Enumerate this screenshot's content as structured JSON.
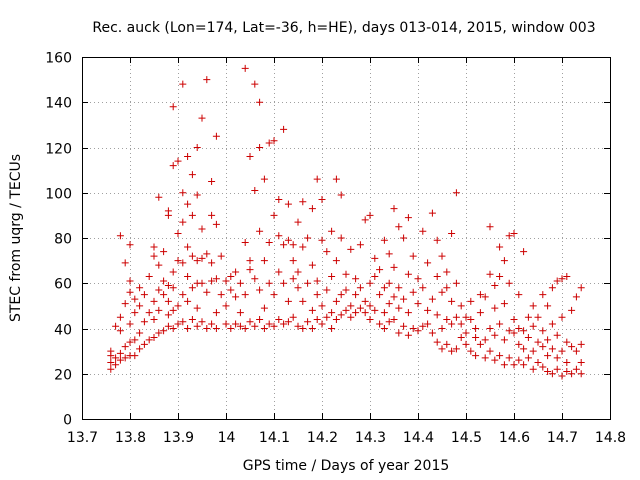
{
  "chart_data": {
    "type": "scatter",
    "title": "Rec. auck (Lon=174, Lat=-36, h=HE), days 013-014, 2015, window 003",
    "xlabel": "GPS time / Days of year 2015",
    "ylabel": "STEC from uqrg / TECUs",
    "xlim": [
      13.7,
      14.8
    ],
    "ylim": [
      0,
      160
    ],
    "xticks": [
      "13.7",
      "13.8",
      "13.9",
      "14",
      "14.1",
      "14.2",
      "14.3",
      "14.4",
      "14.5",
      "14.6",
      "14.7",
      "14.8"
    ],
    "yticks": [
      "0",
      "20",
      "40",
      "60",
      "80",
      "100",
      "120",
      "140",
      "160"
    ],
    "grid": true,
    "marker": "plus",
    "marker_color": "#cc0000",
    "points": [
      [
        13.76,
        22
      ],
      [
        13.76,
        25
      ],
      [
        13.76,
        28
      ],
      [
        13.76,
        30
      ],
      [
        13.77,
        24
      ],
      [
        13.77,
        27
      ],
      [
        13.77,
        41
      ],
      [
        13.78,
        26
      ],
      [
        13.78,
        29
      ],
      [
        13.78,
        39
      ],
      [
        13.78,
        45
      ],
      [
        13.78,
        81
      ],
      [
        13.79,
        27
      ],
      [
        13.79,
        32
      ],
      [
        13.79,
        51
      ],
      [
        13.79,
        69
      ],
      [
        13.8,
        28
      ],
      [
        13.8,
        34
      ],
      [
        13.8,
        42
      ],
      [
        13.8,
        56
      ],
      [
        13.8,
        61
      ],
      [
        13.8,
        77
      ],
      [
        13.81,
        28
      ],
      [
        13.81,
        35
      ],
      [
        13.81,
        47
      ],
      [
        13.81,
        53
      ],
      [
        13.82,
        31
      ],
      [
        13.82,
        38
      ],
      [
        13.82,
        50
      ],
      [
        13.82,
        58
      ],
      [
        13.83,
        33
      ],
      [
        13.83,
        43
      ],
      [
        13.83,
        55
      ],
      [
        13.84,
        35
      ],
      [
        13.84,
        47
      ],
      [
        13.84,
        63
      ],
      [
        13.85,
        36
      ],
      [
        13.85,
        44
      ],
      [
        13.85,
        52
      ],
      [
        13.85,
        72
      ],
      [
        13.85,
        76
      ],
      [
        13.86,
        38
      ],
      [
        13.86,
        48
      ],
      [
        13.86,
        57
      ],
      [
        13.86,
        68
      ],
      [
        13.86,
        98
      ],
      [
        13.87,
        39
      ],
      [
        13.87,
        55
      ],
      [
        13.87,
        61
      ],
      [
        13.87,
        74
      ],
      [
        13.88,
        41
      ],
      [
        13.88,
        46
      ],
      [
        13.88,
        52
      ],
      [
        13.88,
        59
      ],
      [
        13.88,
        90
      ],
      [
        13.88,
        92
      ],
      [
        13.89,
        40
      ],
      [
        13.89,
        48
      ],
      [
        13.89,
        58
      ],
      [
        13.89,
        65
      ],
      [
        13.89,
        112
      ],
      [
        13.89,
        138
      ],
      [
        13.9,
        42
      ],
      [
        13.9,
        50
      ],
      [
        13.9,
        70
      ],
      [
        13.9,
        82
      ],
      [
        13.9,
        114
      ],
      [
        13.91,
        43
      ],
      [
        13.91,
        55
      ],
      [
        13.91,
        69
      ],
      [
        13.91,
        87
      ],
      [
        13.91,
        100
      ],
      [
        13.91,
        148
      ],
      [
        13.92,
        40
      ],
      [
        13.92,
        52
      ],
      [
        13.92,
        63
      ],
      [
        13.92,
        76
      ],
      [
        13.92,
        95
      ],
      [
        13.92,
        116
      ],
      [
        13.93,
        44
      ],
      [
        13.93,
        58
      ],
      [
        13.93,
        72
      ],
      [
        13.93,
        90
      ],
      [
        13.93,
        108
      ],
      [
        13.94,
        41
      ],
      [
        13.94,
        49
      ],
      [
        13.94,
        60
      ],
      [
        13.94,
        70
      ],
      [
        13.94,
        99
      ],
      [
        13.94,
        120
      ],
      [
        13.95,
        43
      ],
      [
        13.95,
        60
      ],
      [
        13.95,
        71
      ],
      [
        13.95,
        84
      ],
      [
        13.95,
        133
      ],
      [
        13.96,
        40
      ],
      [
        13.96,
        56
      ],
      [
        13.96,
        73
      ],
      [
        13.96,
        150
      ],
      [
        13.97,
        42
      ],
      [
        13.97,
        61
      ],
      [
        13.97,
        69
      ],
      [
        13.97,
        90
      ],
      [
        13.97,
        105
      ],
      [
        13.98,
        40
      ],
      [
        13.98,
        47
      ],
      [
        13.98,
        62
      ],
      [
        13.98,
        86
      ],
      [
        13.98,
        125
      ],
      [
        13.99,
        55
      ],
      [
        13.99,
        72
      ],
      [
        14,
        42
      ],
      [
        14,
        50
      ],
      [
        14,
        61
      ],
      [
        14.01,
        40
      ],
      [
        14.01,
        57
      ],
      [
        14.01,
        63
      ],
      [
        14.02,
        42
      ],
      [
        14.02,
        54
      ],
      [
        14.02,
        65
      ],
      [
        14.03,
        41
      ],
      [
        14.03,
        47
      ],
      [
        14.03,
        60
      ],
      [
        14.04,
        40
      ],
      [
        14.04,
        55
      ],
      [
        14.04,
        78
      ],
      [
        14.04,
        155
      ],
      [
        14.05,
        43
      ],
      [
        14.05,
        66
      ],
      [
        14.05,
        70
      ],
      [
        14.05,
        116
      ],
      [
        14.06,
        41
      ],
      [
        14.06,
        62
      ],
      [
        14.06,
        101
      ],
      [
        14.06,
        148
      ],
      [
        14.07,
        44
      ],
      [
        14.07,
        57
      ],
      [
        14.07,
        83
      ],
      [
        14.07,
        140
      ],
      [
        14.07,
        120
      ],
      [
        14.08,
        40
      ],
      [
        14.08,
        49
      ],
      [
        14.08,
        70
      ],
      [
        14.08,
        106
      ],
      [
        14.09,
        42
      ],
      [
        14.09,
        60
      ],
      [
        14.09,
        78
      ],
      [
        14.09,
        122
      ],
      [
        14.1,
        41
      ],
      [
        14.1,
        55
      ],
      [
        14.1,
        90
      ],
      [
        14.1,
        123
      ],
      [
        14.11,
        44
      ],
      [
        14.11,
        65
      ],
      [
        14.11,
        81
      ],
      [
        14.11,
        97
      ],
      [
        14.12,
        42
      ],
      [
        14.12,
        60
      ],
      [
        14.12,
        77
      ],
      [
        14.12,
        128
      ],
      [
        14.13,
        43
      ],
      [
        14.13,
        52
      ],
      [
        14.13,
        79
      ],
      [
        14.13,
        95
      ],
      [
        14.14,
        45
      ],
      [
        14.14,
        62
      ],
      [
        14.14,
        70
      ],
      [
        14.14,
        77
      ],
      [
        14.15,
        41
      ],
      [
        14.15,
        58
      ],
      [
        14.15,
        65
      ],
      [
        14.15,
        87
      ],
      [
        14.16,
        40
      ],
      [
        14.16,
        52
      ],
      [
        14.16,
        76
      ],
      [
        14.16,
        96
      ],
      [
        14.17,
        43
      ],
      [
        14.17,
        60
      ],
      [
        14.17,
        80
      ],
      [
        14.18,
        40
      ],
      [
        14.18,
        48
      ],
      [
        14.18,
        68
      ],
      [
        14.18,
        93
      ],
      [
        14.19,
        44
      ],
      [
        14.19,
        55
      ],
      [
        14.19,
        61
      ],
      [
        14.19,
        106
      ],
      [
        14.2,
        42
      ],
      [
        14.2,
        50
      ],
      [
        14.2,
        79
      ],
      [
        14.2,
        97
      ],
      [
        14.21,
        45
      ],
      [
        14.21,
        57
      ],
      [
        14.21,
        74
      ],
      [
        14.22,
        40
      ],
      [
        14.22,
        47
      ],
      [
        14.22,
        63
      ],
      [
        14.22,
        83
      ],
      [
        14.23,
        44
      ],
      [
        14.23,
        52
      ],
      [
        14.23,
        70
      ],
      [
        14.23,
        106
      ],
      [
        14.24,
        46
      ],
      [
        14.24,
        55
      ],
      [
        14.24,
        80
      ],
      [
        14.24,
        99
      ],
      [
        14.25,
        48
      ],
      [
        14.25,
        57
      ],
      [
        14.25,
        64
      ],
      [
        14.26,
        45
      ],
      [
        14.26,
        50
      ],
      [
        14.26,
        75
      ],
      [
        14.27,
        47
      ],
      [
        14.27,
        55
      ],
      [
        14.27,
        62
      ],
      [
        14.28,
        49
      ],
      [
        14.28,
        58
      ],
      [
        14.28,
        77
      ],
      [
        14.29,
        47
      ],
      [
        14.29,
        52
      ],
      [
        14.29,
        88
      ],
      [
        14.3,
        44
      ],
      [
        14.3,
        50
      ],
      [
        14.3,
        60
      ],
      [
        14.3,
        90
      ],
      [
        14.31,
        48
      ],
      [
        14.31,
        63
      ],
      [
        14.31,
        71
      ],
      [
        14.32,
        42
      ],
      [
        14.32,
        55
      ],
      [
        14.32,
        66
      ],
      [
        14.33,
        40
      ],
      [
        14.33,
        47
      ],
      [
        14.33,
        58
      ],
      [
        14.33,
        79
      ],
      [
        14.34,
        43
      ],
      [
        14.34,
        51
      ],
      [
        14.34,
        60
      ],
      [
        14.34,
        73
      ],
      [
        14.35,
        44
      ],
      [
        14.35,
        54
      ],
      [
        14.35,
        67
      ],
      [
        14.35,
        93
      ],
      [
        14.36,
        38
      ],
      [
        14.36,
        49
      ],
      [
        14.36,
        58
      ],
      [
        14.36,
        85
      ],
      [
        14.37,
        41
      ],
      [
        14.37,
        53
      ],
      [
        14.37,
        80
      ],
      [
        14.38,
        37
      ],
      [
        14.38,
        47
      ],
      [
        14.38,
        64
      ],
      [
        14.38,
        89
      ],
      [
        14.39,
        40
      ],
      [
        14.39,
        56
      ],
      [
        14.39,
        72
      ],
      [
        14.4,
        39
      ],
      [
        14.4,
        51
      ],
      [
        14.4,
        62
      ],
      [
        14.41,
        41
      ],
      [
        14.41,
        58
      ],
      [
        14.41,
        83
      ],
      [
        14.42,
        42
      ],
      [
        14.42,
        48
      ],
      [
        14.42,
        69
      ],
      [
        14.43,
        38
      ],
      [
        14.43,
        53
      ],
      [
        14.43,
        91
      ],
      [
        14.44,
        34
      ],
      [
        14.44,
        46
      ],
      [
        14.44,
        63
      ],
      [
        14.44,
        79
      ],
      [
        14.45,
        31
      ],
      [
        14.45,
        40
      ],
      [
        14.45,
        56
      ],
      [
        14.45,
        72
      ],
      [
        14.46,
        33
      ],
      [
        14.46,
        44
      ],
      [
        14.46,
        58
      ],
      [
        14.46,
        65
      ],
      [
        14.47,
        30
      ],
      [
        14.47,
        42
      ],
      [
        14.47,
        52
      ],
      [
        14.47,
        82
      ],
      [
        14.48,
        31
      ],
      [
        14.48,
        45
      ],
      [
        14.48,
        60
      ],
      [
        14.48,
        100
      ],
      [
        14.49,
        36
      ],
      [
        14.49,
        42
      ],
      [
        14.49,
        50
      ],
      [
        14.5,
        33
      ],
      [
        14.5,
        38
      ],
      [
        14.5,
        45
      ],
      [
        14.51,
        30
      ],
      [
        14.51,
        44
      ],
      [
        14.51,
        52
      ],
      [
        14.52,
        28
      ],
      [
        14.52,
        36
      ],
      [
        14.52,
        40
      ],
      [
        14.53,
        33
      ],
      [
        14.53,
        47
      ],
      [
        14.53,
        55
      ],
      [
        14.54,
        27
      ],
      [
        14.54,
        35
      ],
      [
        14.54,
        54
      ],
      [
        14.55,
        30
      ],
      [
        14.55,
        40
      ],
      [
        14.55,
        64
      ],
      [
        14.55,
        85
      ],
      [
        14.56,
        26
      ],
      [
        14.56,
        37
      ],
      [
        14.56,
        49
      ],
      [
        14.56,
        59
      ],
      [
        14.57,
        28
      ],
      [
        14.57,
        42
      ],
      [
        14.57,
        63
      ],
      [
        14.57,
        76
      ],
      [
        14.58,
        24
      ],
      [
        14.58,
        35
      ],
      [
        14.58,
        51
      ],
      [
        14.58,
        70
      ],
      [
        14.59,
        27
      ],
      [
        14.59,
        39
      ],
      [
        14.59,
        60
      ],
      [
        14.59,
        81
      ],
      [
        14.6,
        24
      ],
      [
        14.6,
        38
      ],
      [
        14.6,
        44
      ],
      [
        14.6,
        82
      ],
      [
        14.61,
        26
      ],
      [
        14.61,
        33
      ],
      [
        14.61,
        40
      ],
      [
        14.61,
        55
      ],
      [
        14.62,
        24
      ],
      [
        14.62,
        31
      ],
      [
        14.62,
        39
      ],
      [
        14.62,
        74
      ],
      [
        14.63,
        27
      ],
      [
        14.63,
        36
      ],
      [
        14.63,
        45
      ],
      [
        14.64,
        22
      ],
      [
        14.64,
        30
      ],
      [
        14.64,
        41
      ],
      [
        14.64,
        50
      ],
      [
        14.65,
        25
      ],
      [
        14.65,
        34
      ],
      [
        14.65,
        45
      ],
      [
        14.66,
        23
      ],
      [
        14.66,
        32
      ],
      [
        14.66,
        39
      ],
      [
        14.66,
        55
      ],
      [
        14.67,
        21
      ],
      [
        14.67,
        28
      ],
      [
        14.67,
        35
      ],
      [
        14.67,
        50
      ],
      [
        14.68,
        20
      ],
      [
        14.68,
        31
      ],
      [
        14.68,
        42
      ],
      [
        14.68,
        58
      ],
      [
        14.69,
        22
      ],
      [
        14.69,
        27
      ],
      [
        14.69,
        37
      ],
      [
        14.69,
        61
      ],
      [
        14.7,
        19
      ],
      [
        14.7,
        30
      ],
      [
        14.7,
        45
      ],
      [
        14.7,
        62
      ],
      [
        14.71,
        21
      ],
      [
        14.71,
        25
      ],
      [
        14.71,
        34
      ],
      [
        14.71,
        63
      ],
      [
        14.72,
        20
      ],
      [
        14.72,
        32
      ],
      [
        14.72,
        48
      ],
      [
        14.73,
        22
      ],
      [
        14.73,
        30
      ],
      [
        14.73,
        54
      ],
      [
        14.74,
        20
      ],
      [
        14.74,
        25
      ],
      [
        14.74,
        33
      ],
      [
        14.74,
        58
      ]
    ]
  }
}
